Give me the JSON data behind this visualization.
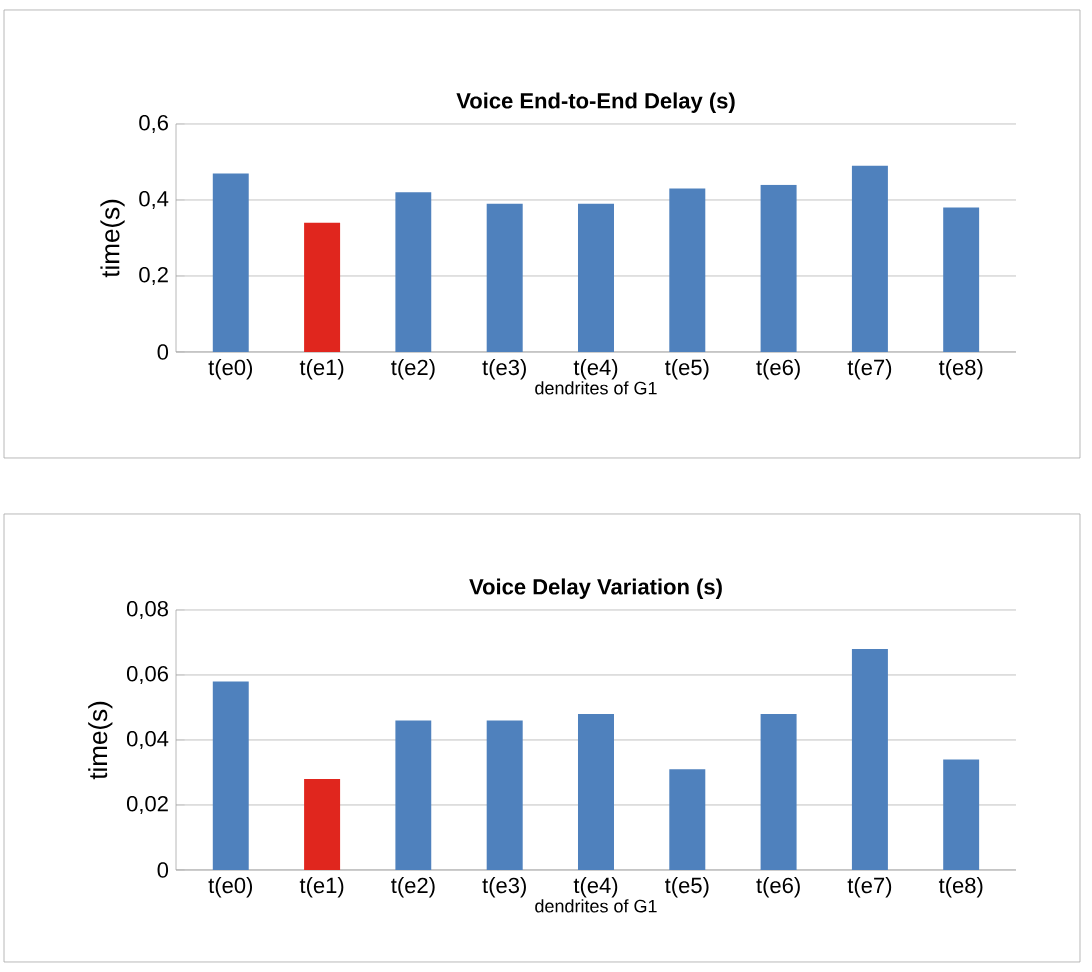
{
  "chart_data": [
    {
      "type": "bar",
      "title": "Voice End-to-End Delay (s)",
      "xlabel": "dendrites of G1",
      "ylabel": "time(s)",
      "categories": [
        "t(e0)",
        "t(e1)",
        "t(e2)",
        "t(e3)",
        "t(e4)",
        "t(e5)",
        "t(e6)",
        "t(e7)",
        "t(e8)"
      ],
      "values": [
        0.47,
        0.34,
        0.42,
        0.39,
        0.39,
        0.43,
        0.44,
        0.49,
        0.38
      ],
      "colors": [
        "#4f81bd",
        "#e0261e",
        "#4f81bd",
        "#4f81bd",
        "#4f81bd",
        "#4f81bd",
        "#4f81bd",
        "#4f81bd",
        "#4f81bd"
      ],
      "ylim": [
        0,
        0.6
      ],
      "yticks": [
        0,
        {
          "value": 0.2,
          "label": "0,2"
        },
        {
          "value": 0.4,
          "label": "0,4"
        },
        {
          "value": 0.6,
          "label": "0,6"
        }
      ],
      "grid": "y"
    },
    {
      "type": "bar",
      "title": "Voice Delay Variation (s)",
      "xlabel": "dendrites of G1",
      "ylabel": "time(s)",
      "categories": [
        "t(e0)",
        "t(e1)",
        "t(e2)",
        "t(e3)",
        "t(e4)",
        "t(e5)",
        "t(e6)",
        "t(e7)",
        "t(e8)"
      ],
      "values": [
        0.058,
        0.028,
        0.046,
        0.046,
        0.048,
        0.031,
        0.048,
        0.068,
        0.034
      ],
      "colors": [
        "#4f81bd",
        "#e0261e",
        "#4f81bd",
        "#4f81bd",
        "#4f81bd",
        "#4f81bd",
        "#4f81bd",
        "#4f81bd",
        "#4f81bd"
      ],
      "ylim": [
        0,
        0.08
      ],
      "yticks": [
        0,
        {
          "value": 0.02,
          "label": "0,02"
        },
        {
          "value": 0.04,
          "label": "0,04"
        },
        {
          "value": 0.06,
          "label": "0,06"
        },
        {
          "value": 0.08,
          "label": "0,08"
        }
      ],
      "grid": "y"
    }
  ]
}
